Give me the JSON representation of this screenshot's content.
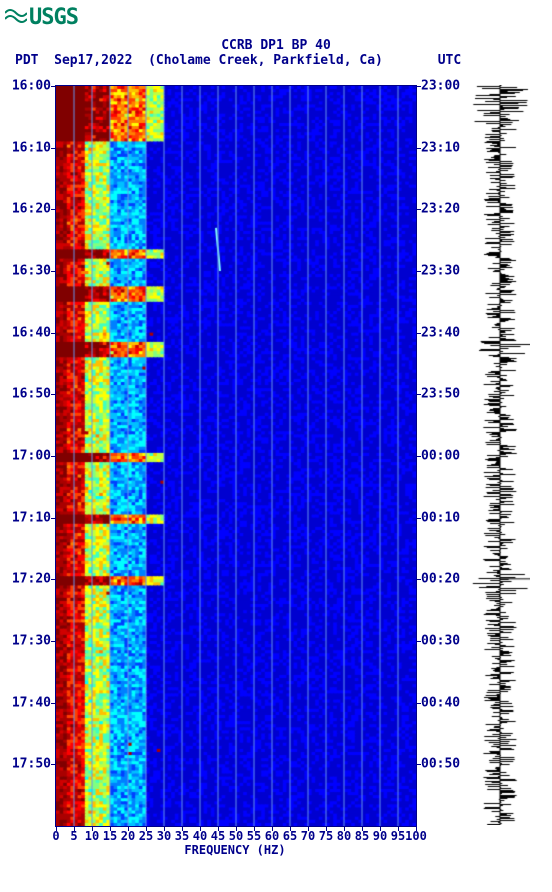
{
  "logo_text": "USGS",
  "header": {
    "title_line1": "CCRB DP1 BP 40",
    "tz_left": "PDT",
    "date": "Sep17,2022",
    "location": "(Cholame Creek, Parkfield, Ca)",
    "tz_right": "UTC"
  },
  "axes": {
    "xlabel": "FREQUENCY (HZ)",
    "xlim": [
      0,
      100
    ],
    "xtick_step": 5,
    "xticks": [
      0,
      5,
      10,
      15,
      20,
      25,
      30,
      35,
      40,
      45,
      50,
      55,
      60,
      65,
      70,
      75,
      80,
      85,
      90,
      95,
      100
    ],
    "time_span_minutes": 120,
    "left_ticks": [
      "16:00",
      "16:10",
      "16:20",
      "16:30",
      "16:40",
      "16:50",
      "17:00",
      "17:10",
      "17:20",
      "17:30",
      "17:40",
      "17:50"
    ],
    "left_tick_minutes": [
      0,
      10,
      20,
      30,
      40,
      50,
      60,
      70,
      80,
      90,
      100,
      110
    ],
    "right_ticks": [
      "23:00",
      "23:10",
      "23:20",
      "23:30",
      "23:40",
      "23:50",
      "00:00",
      "00:10",
      "00:20",
      "00:30",
      "00:40",
      "00:50"
    ],
    "right_tick_minutes": [
      0,
      10,
      20,
      30,
      40,
      50,
      60,
      70,
      80,
      90,
      100,
      110
    ]
  },
  "colors": {
    "axis_text": "#00008b",
    "grid": "#6495ed",
    "background": "#ffffff",
    "logo": "#008060",
    "waveform": "#000000",
    "colormap": [
      "#800000",
      "#aa0000",
      "#d00000",
      "#ff0000",
      "#ff4000",
      "#ff8000",
      "#ffc000",
      "#ffff00",
      "#c0ff40",
      "#80ff80",
      "#40ffc0",
      "#00ffff",
      "#00c0ff",
      "#0080ff",
      "#0040ff",
      "#0000ff",
      "#0000d0",
      "#0000b0"
    ]
  },
  "spectrogram": {
    "type": "spectrogram",
    "freq_hotspot_max_hz": 25,
    "seed": 17,
    "high_intensity_rows_minutes": [
      0,
      1,
      2,
      3,
      4,
      5,
      6,
      7,
      8,
      27,
      33,
      34,
      42,
      43,
      60,
      70,
      80
    ],
    "streak_features": [
      {
        "t_start": 23,
        "t_end": 30,
        "freq_hz": 45,
        "color": "#80ffff"
      }
    ]
  },
  "waveform_panel": {
    "type": "wiggle",
    "baseline": 0.5,
    "amplitude_base": 0.6,
    "bursts_minutes": [
      0,
      1,
      2,
      3,
      4,
      5,
      42,
      43,
      80,
      81
    ],
    "burst_amp": 1.0
  }
}
